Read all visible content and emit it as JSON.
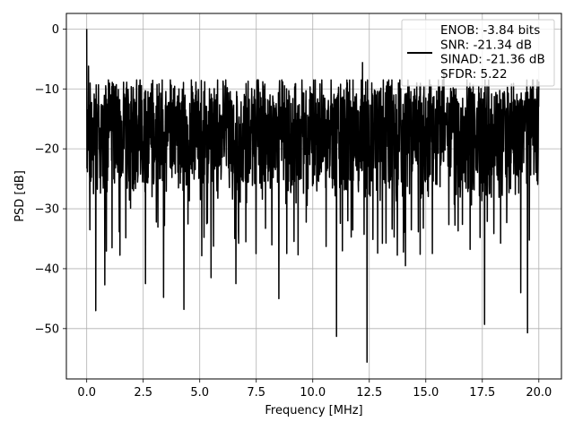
{
  "chart_data": {
    "type": "line",
    "title": "",
    "xlabel": "Frequency [MHz]",
    "ylabel": "PSD [dB]",
    "xlim": [
      -0.9,
      21.0
    ],
    "ylim": [
      -58.4,
      2.6
    ],
    "xticks": [
      0.0,
      2.5,
      5.0,
      7.5,
      10.0,
      12.5,
      15.0,
      17.5,
      20.0
    ],
    "xtick_labels": [
      "0.0",
      "2.5",
      "5.0",
      "7.5",
      "10.0",
      "12.5",
      "15.0",
      "17.5",
      "20.0"
    ],
    "yticks": [
      0,
      -10,
      -20,
      -30,
      -40,
      -50
    ],
    "ytick_labels": [
      "0",
      "−10",
      "−20",
      "−30",
      "−40",
      "−50"
    ],
    "grid": true,
    "legend_position": "top-right",
    "series": [
      {
        "name": "ENOB: -3.84 bits\nSNR: -21.34 dB\nSINAD: -21.36 dB\nSFDR: 5.22",
        "color": "#000000",
        "x_range": [
          0.0,
          20.0
        ],
        "y_band_typical": [
          -32,
          -10
        ],
        "peaks": [
          {
            "x": 0.0,
            "y": 0.0
          },
          {
            "x": 0.08,
            "y": -6.2
          },
          {
            "x": 12.2,
            "y": -5.6
          },
          {
            "x": 15.8,
            "y": -6.8
          }
        ],
        "dips": [
          {
            "x": 0.4,
            "y": -47.0
          },
          {
            "x": 0.8,
            "y": -42.7
          },
          {
            "x": 2.6,
            "y": -42.5
          },
          {
            "x": 3.4,
            "y": -44.8
          },
          {
            "x": 4.3,
            "y": -46.8
          },
          {
            "x": 5.5,
            "y": -41.5
          },
          {
            "x": 6.6,
            "y": -42.5
          },
          {
            "x": 8.5,
            "y": -45.0
          },
          {
            "x": 11.05,
            "y": -51.3
          },
          {
            "x": 12.4,
            "y": -55.6
          },
          {
            "x": 14.1,
            "y": -39.5
          },
          {
            "x": 17.6,
            "y": -49.3
          },
          {
            "x": 19.5,
            "y": -50.7
          },
          {
            "x": 19.2,
            "y": -44.0
          }
        ]
      }
    ],
    "legend_entries": [
      {
        "text": "ENOB: -3.84 bits"
      },
      {
        "text": "SNR: -21.34 dB"
      },
      {
        "text": "SINAD: -21.36 dB"
      },
      {
        "text": "SFDR: 5.22"
      }
    ]
  }
}
